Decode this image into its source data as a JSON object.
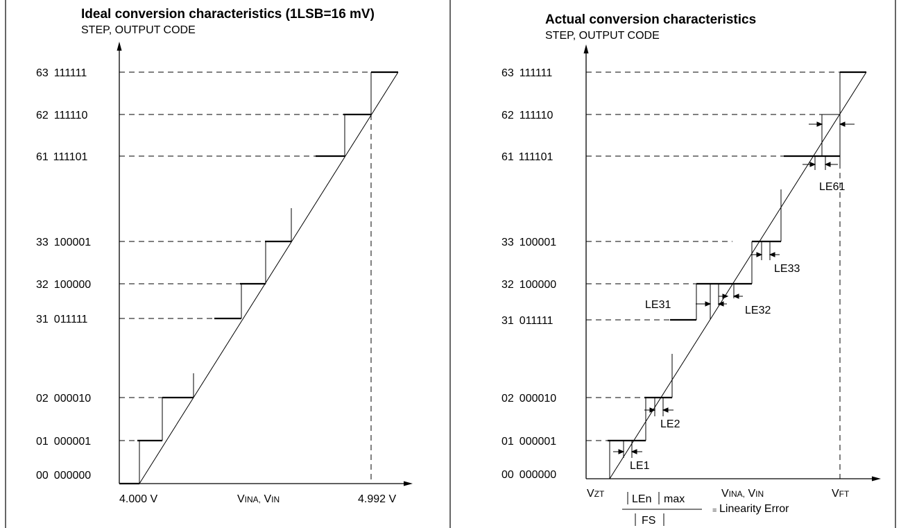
{
  "left_panel": {
    "title": "Ideal conversion characteristics (1LSB=16 mV)",
    "y_axis_title": "STEP, OUTPUT CODE",
    "steps": [
      {
        "step": "63",
        "code": "111111"
      },
      {
        "step": "62",
        "code": "111110"
      },
      {
        "step": "61",
        "code": "111101"
      },
      {
        "step": "33",
        "code": "100001"
      },
      {
        "step": "32",
        "code": "100000"
      },
      {
        "step": "31",
        "code": "011111"
      },
      {
        "step": "02",
        "code": "000010"
      },
      {
        "step": "01",
        "code": "000001"
      },
      {
        "step": "00",
        "code": "000000"
      }
    ],
    "x_start_label": "4.000 V",
    "x_end_label": "4.992 V",
    "x_axis_title": {
      "v1": "V",
      "s1": "INA,",
      "v2": " V",
      "s2": "IN"
    }
  },
  "right_panel": {
    "title": "Actual conversion characteristics",
    "y_axis_title": "STEP, OUTPUT CODE",
    "steps": [
      {
        "step": "63",
        "code": "111111"
      },
      {
        "step": "62",
        "code": "111110"
      },
      {
        "step": "61",
        "code": "111101"
      },
      {
        "step": "33",
        "code": "100001"
      },
      {
        "step": "32",
        "code": "100000"
      },
      {
        "step": "31",
        "code": "011111"
      },
      {
        "step": "02",
        "code": "000010"
      },
      {
        "step": "01",
        "code": "000001"
      },
      {
        "step": "00",
        "code": "000000"
      }
    ],
    "x_axis_title": {
      "v1": "V",
      "s1": "INA,",
      "v2": " V",
      "s2": "IN"
    },
    "vzt": {
      "v": "V",
      "s": "ZT"
    },
    "vft": {
      "v": "V",
      "s": "FT"
    },
    "error_labels": {
      "le1": "LE1",
      "le2": "LE2",
      "le31": "LE31",
      "le32": "LE32",
      "le33": "LE33",
      "le61": "LE61"
    },
    "formula": {
      "numerator": "LEn",
      "max": "max",
      "denominator": "FS",
      "result": "Linearity Error"
    }
  }
}
